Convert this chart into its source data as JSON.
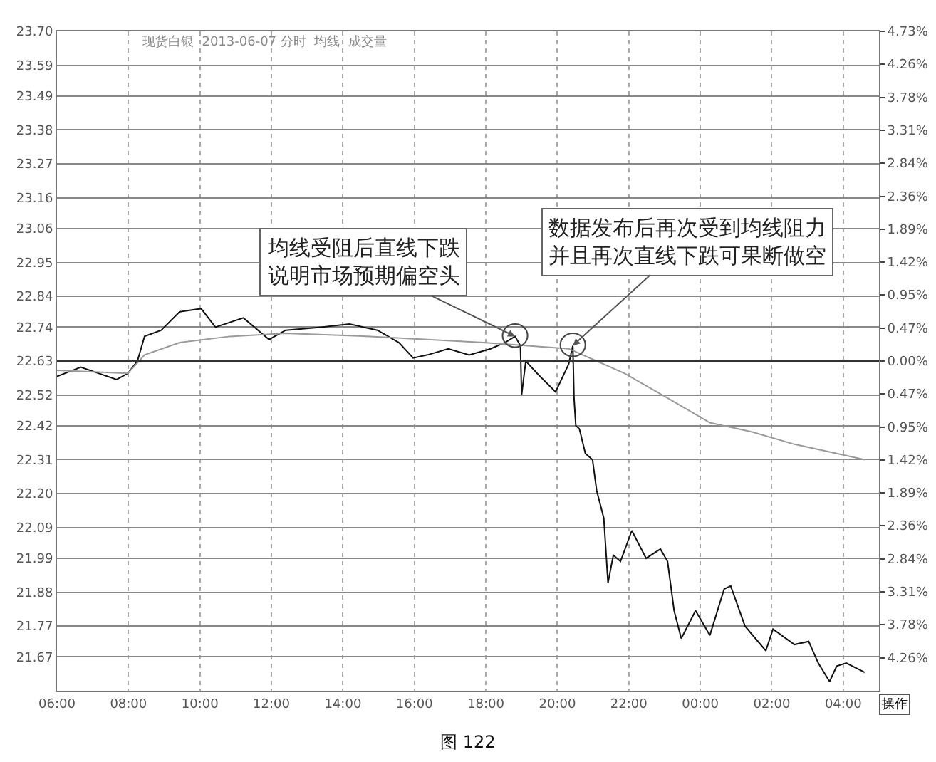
{
  "chart_data": {
    "type": "line",
    "title": "现货白银  2013-06-07 分时  均线  成交量",
    "x": [
      "2013-06-07T06:00",
      "2013-06-07T06:40",
      "2013-06-07T07:40",
      "2013-06-07T07:59",
      "2013-06-07T08:15",
      "2013-06-07T08:27",
      "2013-06-07T08:55",
      "2013-06-07T09:26",
      "2013-06-07T10:02",
      "2013-06-07T10:26",
      "2013-06-07T11:13",
      "2013-06-07T11:56",
      "2013-06-07T12:24",
      "2013-06-07T13:23",
      "2013-06-07T14:11",
      "2013-06-07T14:58",
      "2013-06-07T15:34",
      "2013-06-07T15:58",
      "2013-06-07T16:22",
      "2013-06-07T16:57",
      "2013-06-07T17:32",
      "2013-06-07T18:08",
      "2013-06-07T18:32",
      "2013-06-07T18:49",
      "2013-06-07T18:58",
      "2013-06-07T19:00",
      "2013-06-07T19:07",
      "2013-06-07T19:26",
      "2013-06-07T19:57",
      "2013-06-07T20:19",
      "2013-06-07T20:26",
      "2013-06-07T20:28",
      "2013-06-07T20:31",
      "2013-06-07T20:37",
      "2013-06-07T20:47",
      "2013-06-07T20:59",
      "2013-06-07T21:06",
      "2013-06-07T21:18",
      "2013-06-07T21:25",
      "2013-06-07T21:34",
      "2013-06-07T21:46",
      "2013-06-07T22:05",
      "2013-06-07T22:29",
      "2013-06-07T22:53",
      "2013-06-07T23:05",
      "2013-06-07T23:16",
      "2013-06-07T23:28",
      "2013-06-07T23:52",
      "2013-06-08T00:16",
      "2013-06-08T00:40",
      "2013-06-08T00:51",
      "2013-06-08T01:15",
      "2013-06-08T01:50",
      "2013-06-08T02:02",
      "2013-06-08T02:38",
      "2013-06-08T03:02",
      "2013-06-08T03:18",
      "2013-06-08T03:37",
      "2013-06-08T03:49",
      "2013-06-08T04:05",
      "2013-06-08T04:36"
    ],
    "series": [
      {
        "color": "#111111",
        "values": [
          22.58,
          22.61,
          22.57,
          22.59,
          22.63,
          22.71,
          22.73,
          22.79,
          22.8,
          22.74,
          22.77,
          22.7,
          22.73,
          22.74,
          22.75,
          22.73,
          22.69,
          22.64,
          22.65,
          22.67,
          22.65,
          22.67,
          22.69,
          22.71,
          22.68,
          22.52,
          22.63,
          22.59,
          22.53,
          22.62,
          22.68,
          22.51,
          22.42,
          22.41,
          22.33,
          22.31,
          22.21,
          22.12,
          21.91,
          22.0,
          21.98,
          22.08,
          21.99,
          22.02,
          21.98,
          21.82,
          21.73,
          21.82,
          21.74,
          21.89,
          21.9,
          21.77,
          21.69,
          21.76,
          21.71,
          21.72,
          21.65,
          21.59,
          21.64,
          21.65,
          21.62
        ]
      },
      {
        "color": "#9a9a9a",
        "x": [
          "2013-06-07T06:00",
          "2013-06-07T07:59",
          "2013-06-07T08:27",
          "2013-06-07T09:26",
          "2013-06-07T10:50",
          "2013-06-07T12:24",
          "2013-06-07T14:46",
          "2013-06-07T16:22",
          "2013-06-07T17:56",
          "2013-06-07T19:07",
          "2013-06-07T20:19",
          "2013-06-07T21:06",
          "2013-06-07T21:53",
          "2013-06-07T23:05",
          "2013-06-08T00:16",
          "2013-06-08T01:27",
          "2013-06-08T02:38",
          "2013-06-08T03:49",
          "2013-06-08T04:36"
        ],
        "values": [
          22.6,
          22.59,
          22.65,
          22.69,
          22.71,
          22.72,
          22.71,
          22.7,
          22.69,
          22.68,
          22.67,
          22.63,
          22.59,
          22.51,
          22.43,
          22.4,
          22.36,
          22.33,
          22.31
        ]
      }
    ],
    "xlim": [
      "2013-06-07T06:00",
      "2013-06-08T05:00"
    ],
    "xticks": [
      {
        "value": "2013-06-07T06:00",
        "label": "06:00"
      },
      {
        "value": "2013-06-07T08:00",
        "label": "08:00"
      },
      {
        "value": "2013-06-07T10:00",
        "label": "10:00"
      },
      {
        "value": "2013-06-07T12:00",
        "label": "12:00"
      },
      {
        "value": "2013-06-07T14:00",
        "label": "14:00"
      },
      {
        "value": "2013-06-07T16:00",
        "label": "16:00"
      },
      {
        "value": "2013-06-07T18:00",
        "label": "18:00"
      },
      {
        "value": "2013-06-07T20:00",
        "label": "20:00"
      },
      {
        "value": "2013-06-07T22:00",
        "label": "22:00"
      },
      {
        "value": "2013-06-08T00:00",
        "label": "00:00"
      },
      {
        "value": "2013-06-08T02:00",
        "label": "02:00"
      },
      {
        "value": "2013-06-08T04:00",
        "label": "04:00"
      }
    ],
    "ylim": [
      21.56,
      23.7
    ],
    "yticks": [
      {
        "value": 23.7,
        "label": "23.70"
      },
      23.59,
      23.49,
      23.38,
      23.27,
      23.16,
      23.06,
      22.95,
      22.84,
      22.74,
      22.63,
      22.52,
      22.42,
      22.31,
      {
        "value": 22.2,
        "label": "22.20"
      },
      22.09,
      21.99,
      21.88,
      21.77,
      21.67
    ],
    "y2lim": [
      -4.73,
      4.73
    ],
    "y2ticks": [
      {
        "value": 4.73,
        "label": "4.73%"
      },
      {
        "value": 4.26,
        "label": "4.26%"
      },
      {
        "value": 3.78,
        "label": "3.78%"
      },
      {
        "value": 3.31,
        "label": "3.31%"
      },
      {
        "value": 2.84,
        "label": "2.84%"
      },
      {
        "value": 2.36,
        "label": "2.36%"
      },
      {
        "value": 1.89,
        "label": "1.89%"
      },
      {
        "value": 1.42,
        "label": "1.42%"
      },
      {
        "value": 0.95,
        "label": "0.95%"
      },
      {
        "value": 0.47,
        "label": "0.47%"
      },
      {
        "value": 0,
        "label": "0.00%"
      },
      {
        "value": -0.47,
        "label": "0.47%"
      },
      {
        "value": -0.95,
        "label": "0.95%"
      },
      {
        "value": -1.42,
        "label": "1.42%"
      },
      {
        "value": -1.89,
        "label": "1.89%"
      },
      {
        "value": -2.36,
        "label": "2.36%"
      },
      {
        "value": -2.84,
        "label": "2.84%"
      },
      {
        "value": -3.31,
        "label": "3.31%"
      },
      {
        "value": -3.78,
        "label": "3.78%"
      },
      {
        "value": -4.26,
        "label": "4.26%"
      }
    ],
    "ref_lines": [
      {
        "axis": "y",
        "value": 22.63,
        "color": "#333333"
      }
    ],
    "grid": true,
    "marker": "none",
    "line_style": "solid",
    "annotations": [
      {
        "text": "均线受阻后直线下跌说明市场预期偏空头",
        "x": "2013-06-07T18:49",
        "y": 22.71
      },
      {
        "text": "数据发布后再次受到均线阻力并且再次直线下跌可果断做空",
        "x": "2013-06-07T20:26",
        "y": 22.68
      },
      "操作",
      "图 122"
    ]
  }
}
